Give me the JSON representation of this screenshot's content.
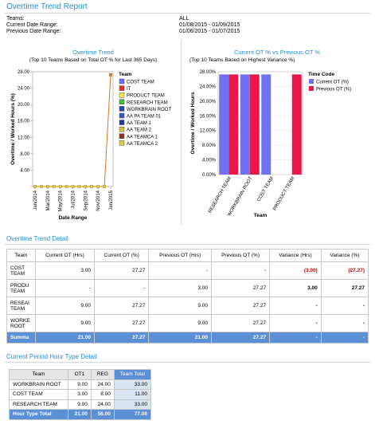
{
  "report": {
    "title": "Overtime Trend Report",
    "teams_label": "Teams:",
    "teams_value": "ALL",
    "current_label": "Current Date Range:",
    "current_value": "01/08/2015 - 01/09/2015",
    "previous_label": "Previous Date Range:",
    "previous_value": "01/06/2015 - 01/07/2015"
  },
  "colors": {
    "accent": "#1a8fd8",
    "summary": "#5b8fd6",
    "negative": "#c00000",
    "line": "#e07020"
  },
  "trend_chart": {
    "title": "Overtime Trend",
    "subtitle": "(Top 10 Teams Based on Total OT % for Last 365 Days)",
    "legend_title": "Team"
  },
  "variance_chart": {
    "title": "Current OT % vs Previous OT %",
    "subtitle": "(Top 10 Teams Based on Highest Variance %)",
    "legend_title": "Time Code"
  },
  "chart_data": [
    {
      "type": "line",
      "title": "Overtime Trend",
      "xlabel": "Date Range",
      "ylabel": "Overtime / Worked Hours (%)",
      "ylim": [
        0,
        28
      ],
      "yticks": [
        "0.00",
        "4.00",
        "8.00",
        "12.00",
        "16.00",
        "20.00",
        "24.00",
        "28.00"
      ],
      "xticks": [
        "Jan/2014",
        "Mar/2014",
        "May/2014",
        "Jul/2014",
        "Sep/2014",
        "Nov/2014",
        "Jan/2015"
      ],
      "legend": [
        "COST TEAM",
        "IT",
        "PRODUCT TEAM",
        "RESEARCH TEAM",
        "WORKBRAIN ROOT",
        "AA PA TEAM 01",
        "AA TEAM 1",
        "AA TEAM 2",
        "AA TEAMCA 1",
        "AA TEAMCA 2"
      ],
      "legend_colors": [
        "#6b6bff",
        "#e8302a",
        "#f2e85a",
        "#3fbf3f",
        "#1f4fa8",
        "#2f5fbf",
        "#1f3f9f",
        "#d8c040",
        "#8a3a20",
        "#d8d040"
      ],
      "series": [
        {
          "name": "COST TEAM",
          "values": [
            0,
            0,
            0,
            0,
            0,
            0,
            0,
            0,
            0,
            0,
            0,
            0,
            27.27
          ]
        }
      ],
      "x_points": 13
    },
    {
      "type": "bar",
      "title": "Current OT % vs Previous OT %",
      "xlabel": "Team",
      "ylabel": "Overtime / Worked Hours",
      "ylim": [
        0,
        28
      ],
      "yticks": [
        "0.00%",
        "4.00%",
        "8.00%",
        "12.00%",
        "16.00%",
        "20.00%",
        "24.00%",
        "28.00%"
      ],
      "categories": [
        "RESEARCH TEAM",
        "WORKBRAIN ROOT",
        "COST TEAM",
        "PRODUCT TEAM"
      ],
      "series": [
        {
          "name": "Current OT (%)",
          "color": "#7070f0",
          "values": [
            27.27,
            27.27,
            27.27,
            0
          ]
        },
        {
          "name": "Previous OT (%)",
          "color": "#e8184a",
          "values": [
            27.27,
            27.27,
            0,
            27.27
          ]
        }
      ]
    }
  ],
  "detail": {
    "title": "Overtime Trend Detail",
    "headers": [
      "Team",
      "Current OT (Hrs)",
      "Current OT (%)",
      "Previous OT (Hrs)",
      "Previous OT (%)",
      "Variance (Hrs)",
      "Variance (%)"
    ],
    "rows": [
      {
        "team": "COST TEAM",
        "cur_hrs": "3.00",
        "cur_pct": "27.27",
        "prev_hrs": "-",
        "prev_pct": "-",
        "var_hrs": "(3.00)",
        "var_pct": "(27.27)"
      },
      {
        "team": "PRODU TEAM",
        "cur_hrs": "-",
        "cur_pct": "-",
        "prev_hrs": "3.00",
        "prev_pct": "27.27",
        "var_hrs": "3.00",
        "var_pct": "27.27"
      },
      {
        "team": "RESEAI TEAM",
        "cur_hrs": "9.00",
        "cur_pct": "27.27",
        "prev_hrs": "9.00",
        "prev_pct": "27.27",
        "var_hrs": "-",
        "var_pct": "-"
      },
      {
        "team": "WORKE ROOT",
        "cur_hrs": "9.00",
        "cur_pct": "27.27",
        "prev_hrs": "9.00",
        "prev_pct": "27.27",
        "var_hrs": "-",
        "var_pct": "-"
      }
    ],
    "summary": {
      "team": "Summa",
      "cur_hrs": "21.00",
      "cur_pct": "27.27",
      "prev_hrs": "21.00",
      "prev_pct": "27.27",
      "var_hrs": "-",
      "var_pct": "-"
    }
  },
  "hour_type": {
    "title": "Current Period Hour Type Detail",
    "headers": [
      "Team",
      "OT1",
      "REG",
      "Team Total"
    ],
    "rows": [
      {
        "team": "WORKBRAIN ROOT",
        "ot1": "9.00",
        "reg": "24.00",
        "total": "33.00"
      },
      {
        "team": "COST TEAM",
        "ot1": "3.00",
        "reg": "8.00",
        "total": "11.00"
      },
      {
        "team": "RESEARCH TEAM",
        "ot1": "9.00",
        "reg": "24.00",
        "total": "33.00"
      }
    ],
    "summary": {
      "team": "Hour Type Total",
      "ot1": "21.00",
      "reg": "56.00",
      "total": "77.00"
    }
  }
}
